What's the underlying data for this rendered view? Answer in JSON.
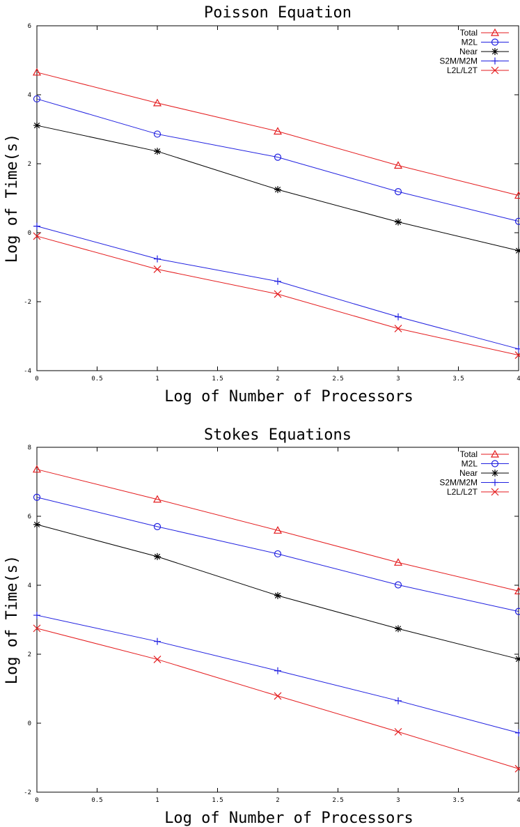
{
  "chart_data": [
    {
      "type": "line",
      "title": "Poisson Equation",
      "xlabel": "Log of Number of Processors",
      "ylabel": "Log of Time(s)",
      "xlim": [
        0,
        4
      ],
      "ylim": [
        -4,
        6
      ],
      "xticks": [
        0,
        0.5,
        1,
        1.5,
        2,
        2.5,
        3,
        3.5,
        4
      ],
      "xtick_labels": [
        "0",
        "0.5",
        "1",
        "1.5",
        "2",
        "2.5",
        "3",
        "3.5",
        "4"
      ],
      "yticks": [
        -4,
        -2,
        0,
        2,
        4,
        6
      ],
      "ytick_labels": [
        "-4",
        "-2",
        "0",
        "2",
        "4",
        "6"
      ],
      "grid": false,
      "legend_position": "top-right",
      "x": [
        0,
        1,
        2,
        3,
        4
      ],
      "series": [
        {
          "name": "Total",
          "color": "#e41a1c",
          "marker": "triangle",
          "values": [
            4.65,
            3.76,
            2.94,
            1.95,
            1.08
          ]
        },
        {
          "name": "M2L",
          "color": "#1f1fe0",
          "marker": "circle",
          "values": [
            3.88,
            2.86,
            2.19,
            1.19,
            0.33
          ]
        },
        {
          "name": "Near",
          "color": "#000000",
          "marker": "asterisk",
          "values": [
            3.11,
            2.36,
            1.25,
            0.31,
            -0.52
          ]
        },
        {
          "name": "S2M/M2M",
          "color": "#1f1fe0",
          "marker": "plus",
          "values": [
            0.19,
            -0.76,
            -1.41,
            -2.44,
            -3.37
          ]
        },
        {
          "name": "L2L/L2T",
          "color": "#e41a1c",
          "marker": "cross",
          "values": [
            -0.1,
            -1.06,
            -1.78,
            -2.78,
            -3.55
          ]
        }
      ]
    },
    {
      "type": "line",
      "title": "Stokes Equations",
      "xlabel": "Log of Number of Processors",
      "ylabel": "Log of Time(s)",
      "xlim": [
        0,
        4
      ],
      "ylim": [
        -2,
        8
      ],
      "xticks": [
        0,
        0.5,
        1,
        1.5,
        2,
        2.5,
        3,
        3.5,
        4
      ],
      "xtick_labels": [
        "0",
        "0.5",
        "1",
        "1.5",
        "2",
        "2.5",
        "3",
        "3.5",
        "4"
      ],
      "yticks": [
        -2,
        0,
        2,
        4,
        6,
        8
      ],
      "ytick_labels": [
        "-2",
        "0",
        "2",
        "4",
        "6",
        "8"
      ],
      "grid": false,
      "legend_position": "top-right",
      "x": [
        0,
        1,
        2,
        3,
        4
      ],
      "series": [
        {
          "name": "Total",
          "color": "#e41a1c",
          "marker": "triangle",
          "values": [
            7.36,
            6.49,
            5.59,
            4.66,
            3.83
          ]
        },
        {
          "name": "M2L",
          "color": "#1f1fe0",
          "marker": "circle",
          "values": [
            6.55,
            5.7,
            4.91,
            4.01,
            3.24
          ]
        },
        {
          "name": "Near",
          "color": "#000000",
          "marker": "asterisk",
          "values": [
            5.76,
            4.83,
            3.7,
            2.74,
            1.86
          ]
        },
        {
          "name": "S2M/M2M",
          "color": "#1f1fe0",
          "marker": "plus",
          "values": [
            3.13,
            2.37,
            1.52,
            0.65,
            -0.28
          ]
        },
        {
          "name": "L2L/L2T",
          "color": "#e41a1c",
          "marker": "cross",
          "values": [
            2.75,
            1.85,
            0.79,
            -0.25,
            -1.32
          ]
        }
      ]
    }
  ]
}
